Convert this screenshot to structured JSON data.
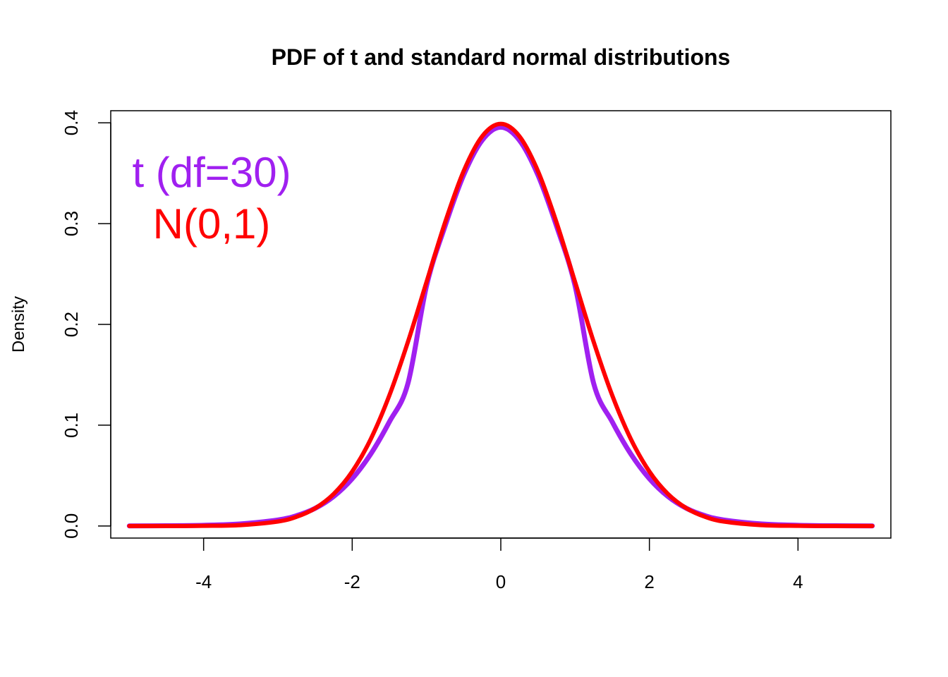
{
  "chart_data": {
    "type": "line",
    "title": "PDF of t and standard normal distributions",
    "xlabel": "",
    "ylabel": "Density",
    "xlim": [
      -5.25,
      5.25
    ],
    "ylim": [
      -0.012,
      0.412
    ],
    "x_ticks": [
      "-4",
      "-2",
      "0",
      "2",
      "4"
    ],
    "x_tick_values": [
      -4,
      -2,
      0,
      2,
      4
    ],
    "y_ticks": [
      "0.0",
      "0.1",
      "0.2",
      "0.3",
      "0.4"
    ],
    "y_tick_values": [
      0.0,
      0.1,
      0.2,
      0.3,
      0.4
    ],
    "grid": false,
    "legend_position": "top-left",
    "x": [
      -5.0,
      -4.5,
      -4.0,
      -3.5,
      -3.0,
      -2.75,
      -2.5,
      -2.25,
      -2.0,
      -1.75,
      -1.5,
      -1.25,
      -1.0,
      -0.75,
      -0.5,
      -0.25,
      0.0,
      0.25,
      0.5,
      0.75,
      1.0,
      1.25,
      1.5,
      1.75,
      2.0,
      2.25,
      2.5,
      2.75,
      3.0,
      3.5,
      4.0,
      4.5,
      5.0
    ],
    "series": [
      {
        "name": "t (df=30)",
        "color": "#a020f0",
        "values": [
          6e-05,
          0.00021,
          0.00071,
          0.00209,
          0.00599,
          0.01021,
          0.01744,
          0.02925,
          0.04689,
          0.07145,
          0.10326,
          0.14141,
          0.23814,
          0.29758,
          0.34816,
          0.38274,
          0.39563,
          0.38274,
          0.34816,
          0.29758,
          0.23814,
          0.14141,
          0.10326,
          0.07145,
          0.04689,
          0.02925,
          0.01744,
          0.01021,
          0.00599,
          0.00209,
          0.00071,
          0.00021,
          6e-05
        ]
      },
      {
        "name": "N(0,1)",
        "color": "#ff0000",
        "values": [
          1.5e-06,
          1.6e-05,
          0.00013,
          0.00087,
          0.00443,
          0.00909,
          0.01753,
          0.03174,
          0.05399,
          0.08628,
          0.12952,
          0.18265,
          0.24197,
          0.30114,
          0.35207,
          0.38667,
          0.39894,
          0.38667,
          0.35207,
          0.30114,
          0.24197,
          0.18265,
          0.12952,
          0.08628,
          0.05399,
          0.03174,
          0.01753,
          0.00909,
          0.00443,
          0.00087,
          0.00013,
          1.6e-05,
          1.5e-06
        ]
      }
    ]
  }
}
